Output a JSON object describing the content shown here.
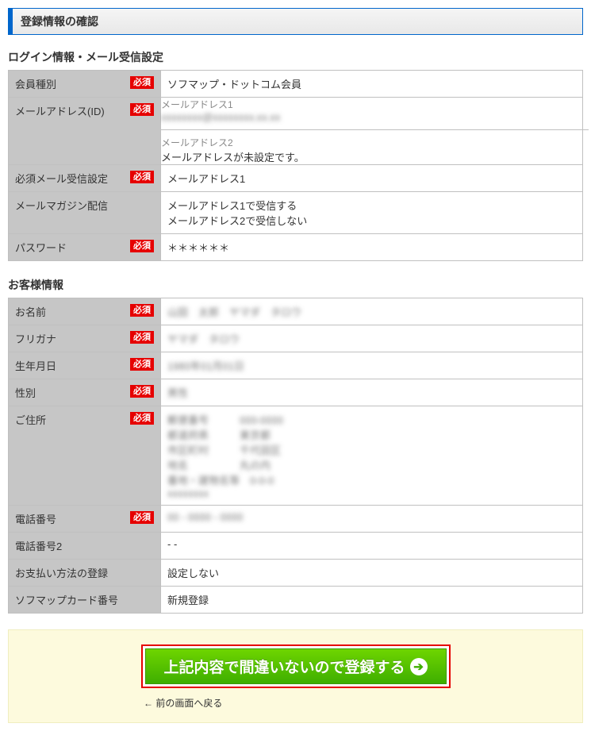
{
  "page_title": "登録情報の確認",
  "required_badge": "必須",
  "sections": {
    "login": {
      "title": "ログイン情報・メール受信設定",
      "rows": {
        "member_type": {
          "label": "会員種別",
          "required": true,
          "value": "ソフマップ・ドットコム会員"
        },
        "email": {
          "label": "メールアドレス(ID)",
          "required": true,
          "sub1_hint": "メールアドレス1",
          "sub1_value": "xxxxxxxx@xxxxxxxx.xx.xx",
          "sub2_hint": "メールアドレス2",
          "sub2_value": "メールアドレスが未設定です。"
        },
        "required_mail": {
          "label": "必須メール受信設定",
          "required": true,
          "value": "メールアドレス1"
        },
        "magazine": {
          "label": "メールマガジン配信",
          "required": false,
          "line1": "メールアドレス1で受信する",
          "line2": "メールアドレス2で受信しない"
        },
        "password": {
          "label": "パスワード",
          "required": true,
          "value": "＊＊＊＊＊＊"
        }
      }
    },
    "customer": {
      "title": "お客様情報",
      "rows": {
        "name": {
          "label": "お名前",
          "required": true,
          "value": "山田　太郎　ヤマダ　タロウ"
        },
        "kana": {
          "label": "フリガナ",
          "required": true,
          "value": "ヤマダ　タロウ"
        },
        "birth": {
          "label": "生年月日",
          "required": true,
          "value": "1980年01月01日"
        },
        "gender": {
          "label": "性別",
          "required": true,
          "value": "男性"
        },
        "address": {
          "label": "ご住所",
          "required": true
        },
        "address_lines": {
          "zip": "郵便番号　　　000-0000",
          "pref": "都道府県　　　東京都",
          "city": "市区町村　　　千代田区",
          "town": "地名　　　　　丸の内",
          "street": "番地・建物名等　0-0-0",
          "extra": "xxxxxxxx"
        },
        "tel": {
          "label": "電話番号",
          "required": true,
          "value": "00 - 0000 - 0000"
        },
        "tel2": {
          "label": "電話番号2",
          "required": false,
          "value": "- -"
        },
        "payment": {
          "label": "お支払い方法の登録",
          "required": false,
          "value": "設定しない"
        },
        "card": {
          "label": "ソフマップカード番号",
          "required": false,
          "value": "新規登録"
        }
      }
    }
  },
  "actions": {
    "submit_label": "上記内容で間違いないので登録する",
    "back_label": "← 前の画面へ戻る"
  }
}
